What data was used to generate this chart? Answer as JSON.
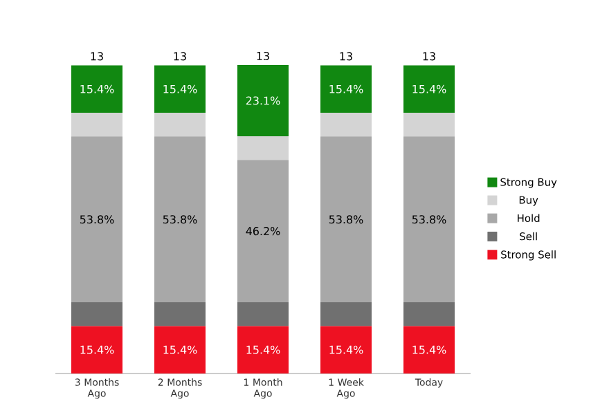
{
  "chart_data": {
    "type": "bar",
    "stacked": true,
    "legend": "right",
    "categories": [
      "3 Months Ago",
      "2 Months Ago",
      "1 Month Ago",
      "1 Week Ago",
      "Today"
    ],
    "series": [
      {
        "name": "Strong Sell",
        "color": "#ee1122",
        "values": [
          15.4,
          15.4,
          15.4,
          15.4,
          15.4
        ],
        "value_labels": [
          "15.4%",
          "15.4%",
          "15.4%",
          "15.4%",
          "15.4%"
        ]
      },
      {
        "name": "Sell",
        "color": "#707070",
        "values": [
          7.7,
          7.7,
          7.7,
          7.7,
          7.7
        ],
        "value_labels": [
          null,
          null,
          null,
          null,
          null
        ]
      },
      {
        "name": "Hold",
        "color": "#a8a8a8",
        "values": [
          53.8,
          53.8,
          46.2,
          53.8,
          53.8
        ],
        "value_labels": [
          "53.8%",
          "53.8%",
          "46.2%",
          "53.8%",
          "53.8%"
        ]
      },
      {
        "name": "Buy",
        "color": "#d4d4d4",
        "values": [
          7.7,
          7.7,
          7.7,
          7.7,
          7.7
        ],
        "value_labels": [
          null,
          null,
          null,
          null,
          null
        ]
      },
      {
        "name": "Strong Buy",
        "color": "#118811",
        "values": [
          15.4,
          15.4,
          23.1,
          15.4,
          15.4
        ],
        "value_labels": [
          "15.4%",
          "15.4%",
          "23.1%",
          "15.4%",
          "15.4%"
        ]
      }
    ],
    "annotations": [
      "13",
      "13",
      "13",
      "13",
      "13"
    ]
  }
}
